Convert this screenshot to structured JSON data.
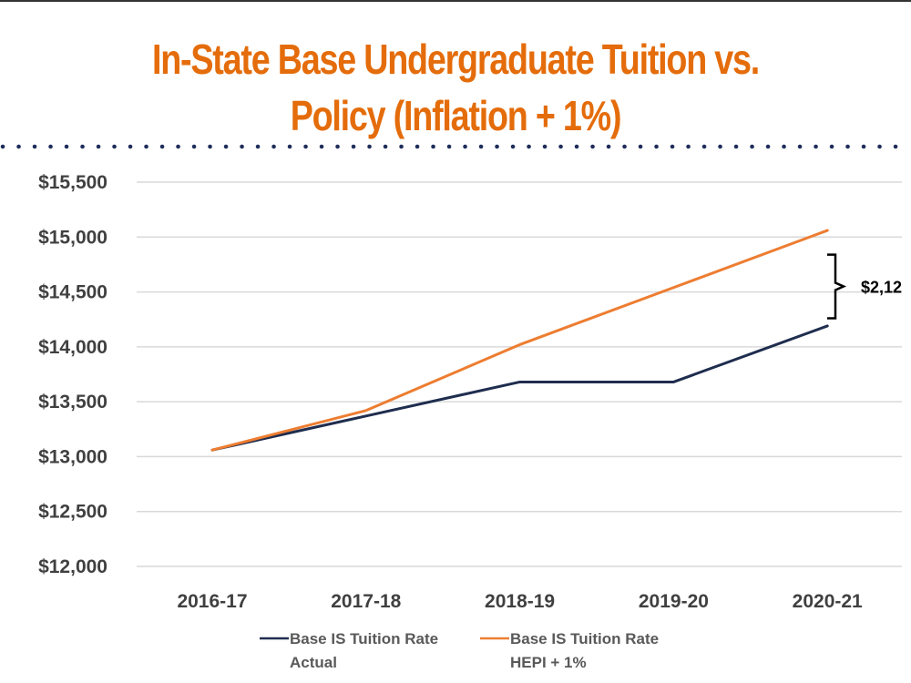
{
  "chart_data": {
    "type": "line",
    "title_lines": [
      "In-State Base Undergraduate Tuition vs.",
      "Policy (Inflation + 1%)"
    ],
    "xlabel": "",
    "ylabel": "",
    "categories": [
      "2016-17",
      "2017-18",
      "2018-19",
      "2019-20",
      "2020-21"
    ],
    "ylim": [
      12000,
      15500
    ],
    "yticks": [
      12000,
      12500,
      13000,
      13500,
      14000,
      14500,
      15000,
      15500
    ],
    "ytick_labels": [
      "$12,000",
      "$12,500",
      "$13,000",
      "$13,500",
      "$14,000",
      "$14,500",
      "$15,000",
      "$15,500"
    ],
    "grid": true,
    "legend_position": "bottom",
    "series": [
      {
        "name": "Base IS Tuition Rate Actual",
        "legend_lines": [
          "Base IS Tuition Rate",
          "Actual"
        ],
        "color": "#1f2d4e",
        "values": [
          13060,
          13370,
          13680,
          13680,
          14190
        ]
      },
      {
        "name": "Base IS Tuition Rate HEPI + 1%",
        "legend_lines": [
          "Base IS Tuition Rate",
          "HEPI + 1%"
        ],
        "color": "#ed7d31",
        "values": [
          13060,
          13420,
          14020,
          14540,
          15060
        ]
      }
    ],
    "annotation": {
      "text": "$2,12",
      "bracket_range": [
        14260,
        14840
      ]
    }
  },
  "colors": {
    "title": "#e46c0a",
    "divider_dots": "#1f2d5a",
    "gridline": "#d9d9d9"
  }
}
